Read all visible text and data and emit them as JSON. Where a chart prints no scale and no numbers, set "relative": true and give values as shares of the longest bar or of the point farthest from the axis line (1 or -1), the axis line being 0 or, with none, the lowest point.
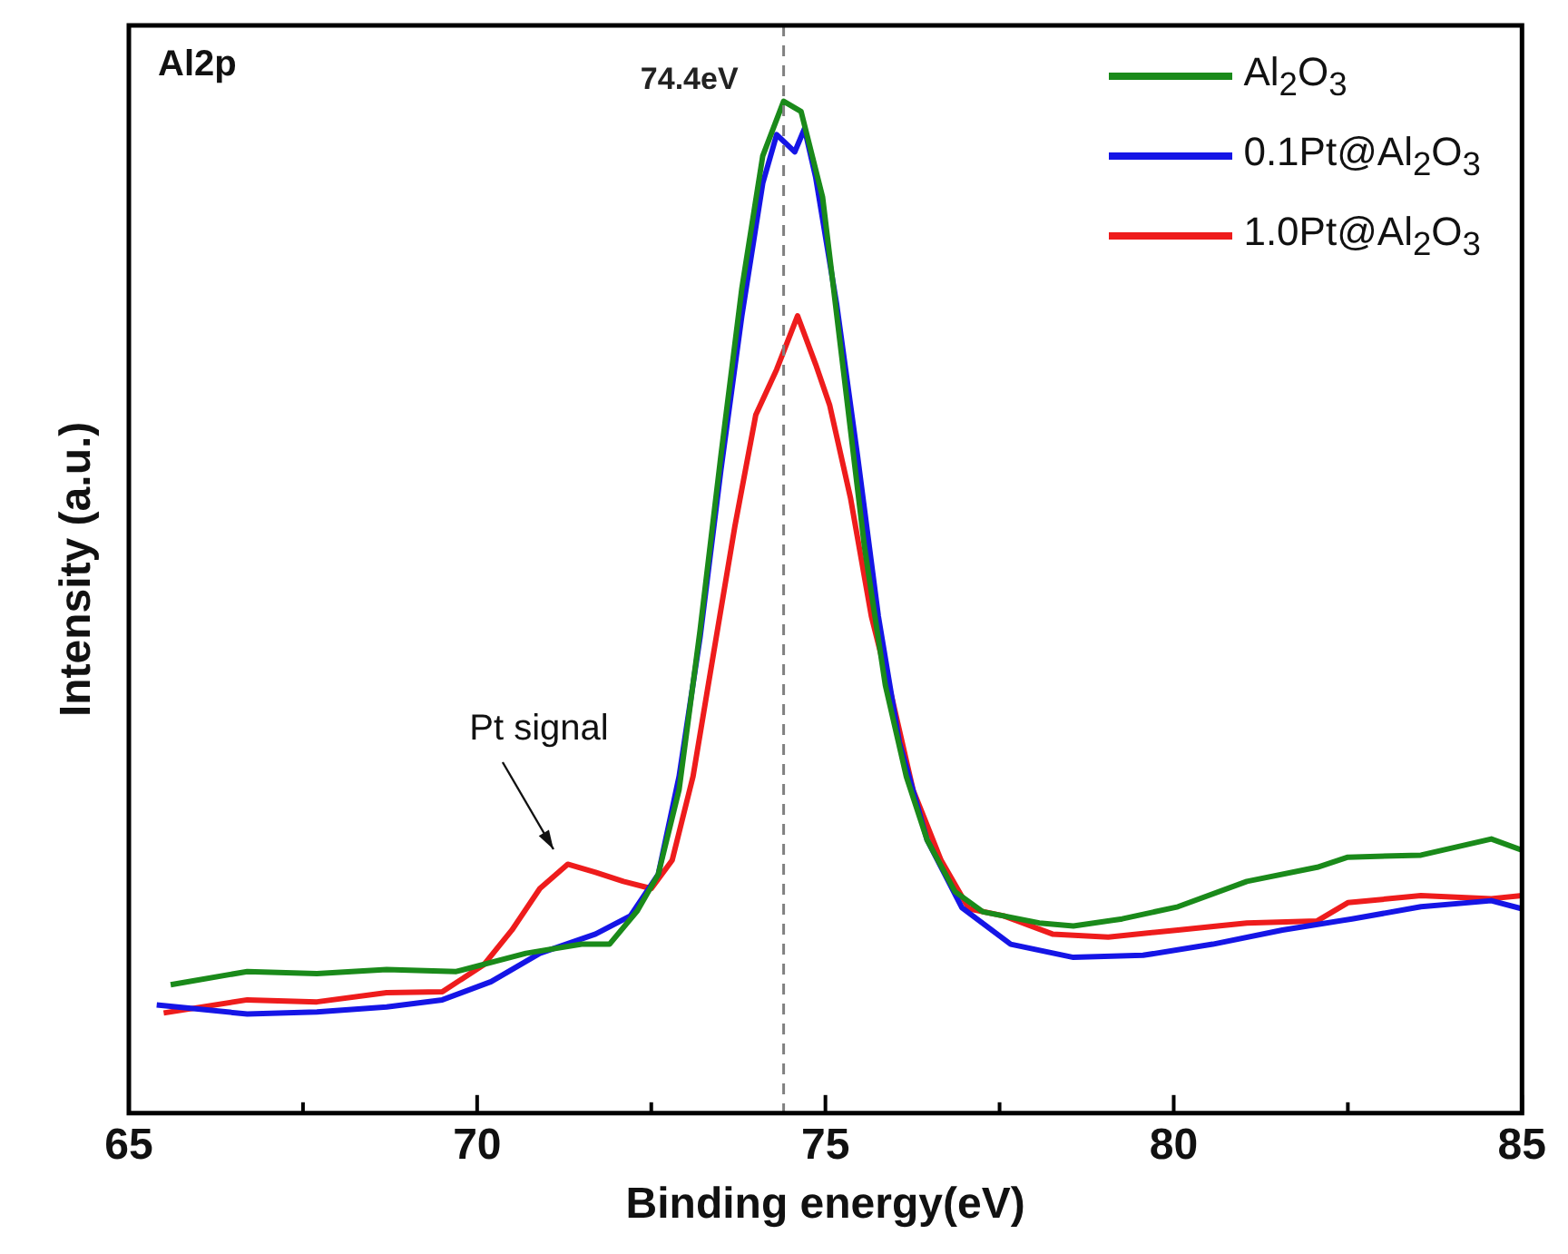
{
  "chart_data": {
    "type": "line",
    "xlabel": "Binding energy(eV)",
    "ylabel": "Intensity (a.u.)",
    "relative": true,
    "xlim": [
      65,
      85
    ],
    "xticks": [
      65,
      {
        "value": 67.5,
        "label": null
      },
      70,
      {
        "value": 72.5,
        "label": null
      },
      75,
      {
        "value": 77.5,
        "label": null
      },
      80,
      {
        "value": 82.5,
        "label": null
      },
      85
    ],
    "legend": "top right",
    "grid": false,
    "annotations": [
      "Al2p",
      {
        "text": "Pt signal",
        "x": 71.2,
        "y": 0.25
      }
    ],
    "ref_lines": [
      {
        "axis": "x",
        "value": 74.4,
        "label": "74.4eV",
        "color": "#808080",
        "line_style": "dashed"
      }
    ],
    "series": [
      {
        "name": "Al$_{2}$O$_{3}$",
        "color": "#1a8a1a",
        "x": [
          65.6,
          66.7,
          67.7,
          68.7,
          69.7,
          70.7,
          71.5,
          71.9,
          72.3,
          72.6,
          72.9,
          73.2,
          73.5,
          73.8,
          74.1,
          74.4,
          74.65,
          74.96,
          75.26,
          75.56,
          75.86,
          76.16,
          76.46,
          76.86,
          77.26,
          78.07,
          78.56,
          79.26,
          80.06,
          81.05,
          82.06,
          82.5,
          83.55,
          84.56,
          85
        ],
        "values": [
          0.127,
          0.14,
          0.138,
          0.142,
          0.14,
          0.158,
          0.167,
          0.167,
          0.2,
          0.236,
          0.32,
          0.477,
          0.65,
          0.815,
          0.946,
          1.0,
          0.99,
          0.905,
          0.733,
          0.56,
          0.423,
          0.333,
          0.27,
          0.219,
          0.199,
          0.188,
          0.185,
          0.192,
          0.204,
          0.229,
          0.243,
          0.253,
          0.255,
          0.271,
          0.26
        ]
      },
      {
        "name": "0.1Pt@Al$_{2}$O$_{3}$",
        "color": "#1515e6",
        "x": [
          65.4,
          66.7,
          67.7,
          68.7,
          69.5,
          70.2,
          70.9,
          71.7,
          72.2,
          72.6,
          72.9,
          73.2,
          73.5,
          73.8,
          74.1,
          74.3,
          74.56,
          74.7,
          74.86,
          75.16,
          75.46,
          75.76,
          76.06,
          76.46,
          76.96,
          77.66,
          78.56,
          79.56,
          80.56,
          81.56,
          82.56,
          83.55,
          84.56,
          85
        ],
        "values": [
          0.107,
          0.098,
          0.1,
          0.105,
          0.112,
          0.13,
          0.158,
          0.177,
          0.195,
          0.236,
          0.333,
          0.47,
          0.636,
          0.788,
          0.919,
          0.967,
          0.95,
          0.973,
          0.925,
          0.8,
          0.65,
          0.491,
          0.367,
          0.27,
          0.203,
          0.167,
          0.154,
          0.156,
          0.167,
          0.181,
          0.192,
          0.204,
          0.21,
          0.202
        ]
      },
      {
        "name": "1.0Pt@Al$_{2}$O$_{3}$",
        "color": "#ee1c1c",
        "x": [
          65.5,
          66.7,
          67.7,
          68.7,
          69.5,
          70.1,
          70.5,
          70.9,
          71.3,
          71.7,
          72.1,
          72.5,
          72.8,
          73.1,
          73.4,
          73.7,
          74.0,
          74.3,
          74.6,
          74.86,
          75.06,
          75.36,
          75.66,
          75.96,
          76.26,
          76.66,
          77.06,
          77.56,
          78.26,
          79.06,
          80.06,
          81.05,
          82.06,
          82.5,
          83.55,
          84.56,
          85
        ],
        "values": [
          0.099,
          0.112,
          0.11,
          0.119,
          0.12,
          0.147,
          0.181,
          0.222,
          0.246,
          0.238,
          0.229,
          0.222,
          0.25,
          0.333,
          0.457,
          0.58,
          0.69,
          0.735,
          0.788,
          0.74,
          0.7,
          0.608,
          0.491,
          0.409,
          0.319,
          0.25,
          0.202,
          0.195,
          0.177,
          0.174,
          0.181,
          0.188,
          0.19,
          0.208,
          0.215,
          0.212,
          0.215
        ]
      }
    ]
  }
}
